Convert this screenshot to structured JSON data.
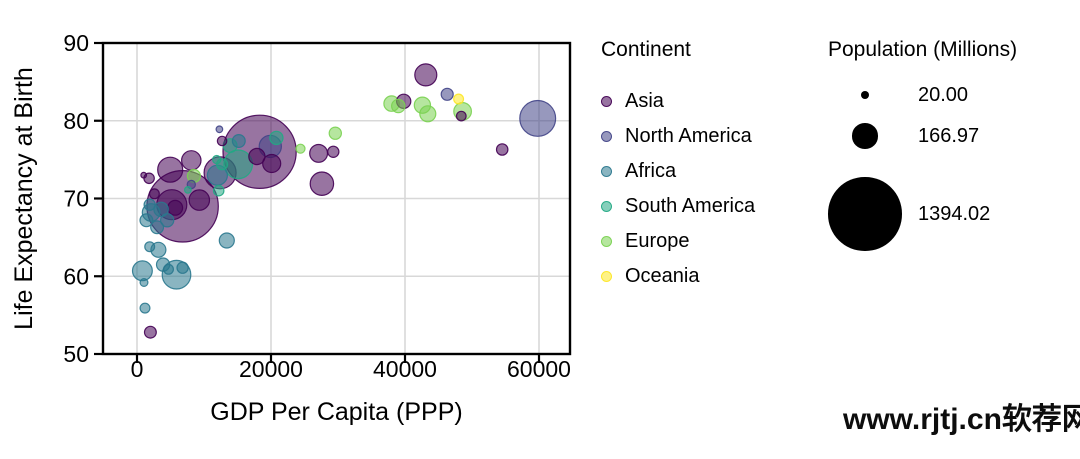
{
  "watermark": "www.rjtj.cn软荐网",
  "colors": {
    "background": "#ffffff",
    "grid": "#d8d8d8",
    "axis": "#000000",
    "size_legend_circle": "#000000",
    "continent_palette": {
      "Asia": "#440154",
      "North America": "#414487",
      "Africa": "#2a788e",
      "South America": "#22a884",
      "Europe": "#7ad151",
      "Oceania": "#fde725"
    },
    "bubble_fill_opacity": 0.55,
    "bubble_stroke_opacity": 0.9
  },
  "legend_continent": {
    "title": "Continent",
    "items": [
      {
        "label": "Asia",
        "color": "#440154"
      },
      {
        "label": "North America",
        "color": "#414487"
      },
      {
        "label": "Africa",
        "color": "#2a788e"
      },
      {
        "label": "South America",
        "color": "#22a884"
      },
      {
        "label": "Europe",
        "color": "#7ad151"
      },
      {
        "label": "Oceania",
        "color": "#fde725"
      }
    ]
  },
  "legend_size": {
    "title": "Population (Millions)",
    "items": [
      {
        "label": "20.00",
        "value": 20.0
      },
      {
        "label": "166.97",
        "value": 166.97
      },
      {
        "label": "1394.02",
        "value": 1394.02
      }
    ]
  },
  "chart_data": {
    "type": "scatter",
    "title": "",
    "xlabel": "GDP Per Capita  (PPP)",
    "ylabel": "Life Expectancy at Birth",
    "x_ticks": [
      0,
      20000,
      40000,
      60000
    ],
    "x_tick_labels": [
      "0",
      "20000",
      "40000",
      "60000"
    ],
    "y_ticks": [
      50,
      60,
      70,
      80,
      90
    ],
    "y_tick_labels": [
      "50",
      "60",
      "70",
      "80",
      "90"
    ],
    "xlim": [
      -5100,
      64800
    ],
    "ylim": [
      50,
      90
    ],
    "grid": true,
    "legend_position": "right",
    "size_encoding": "population_millions",
    "color_encoding": "continent",
    "series": [
      {
        "name": "Asia",
        "color": "#440154",
        "points": [
          {
            "gdp": 18300,
            "life_expectancy": 76.0,
            "population": 1394.02
          },
          {
            "gdp": 6800,
            "life_expectancy": 69.0,
            "population": 1326.1
          },
          {
            "gdp": 43100,
            "life_expectancy": 85.9,
            "population": 125.5
          },
          {
            "gdp": 12400,
            "life_expectancy": 73.3,
            "population": 267.0
          },
          {
            "gdp": 5200,
            "life_expectancy": 69.2,
            "population": 233.5
          },
          {
            "gdp": 4950,
            "life_expectancy": 73.7,
            "population": 162.9
          },
          {
            "gdp": 9300,
            "life_expectancy": 69.8,
            "population": 109.2
          },
          {
            "gdp": 8100,
            "life_expectancy": 74.9,
            "population": 98.7
          },
          {
            "gdp": 17900,
            "life_expectancy": 75.4,
            "population": 69.0
          },
          {
            "gdp": 5700,
            "life_expectancy": 68.8,
            "population": 56.6
          },
          {
            "gdp": 39800,
            "life_expectancy": 82.5,
            "population": 51.8
          },
          {
            "gdp": 27600,
            "life_expectancy": 71.9,
            "population": 141.7
          },
          {
            "gdp": 27100,
            "life_expectancy": 75.8,
            "population": 82.0
          },
          {
            "gdp": 20100,
            "life_expectancy": 74.5,
            "population": 84.9
          },
          {
            "gdp": 29300,
            "life_expectancy": 76.0,
            "population": 32.7
          },
          {
            "gdp": 54500,
            "life_expectancy": 76.3,
            "population": 34.1
          },
          {
            "gdp": 2000,
            "life_expectancy": 52.8,
            "population": 36.6
          },
          {
            "gdp": 1800,
            "life_expectancy": 72.6,
            "population": 28.0
          },
          {
            "gdp": 12700,
            "life_expectancy": 77.4,
            "population": 22.9
          },
          {
            "gdp": 48400,
            "life_expectancy": 80.6,
            "population": 23.6
          },
          {
            "gdp": 1000,
            "life_expectancy": 73.0,
            "population": 8.0
          },
          {
            "gdp": 2600,
            "life_expectancy": 70.6,
            "population": 25.0
          }
        ]
      },
      {
        "name": "North America",
        "color": "#414487",
        "points": [
          {
            "gdp": 59800,
            "life_expectancy": 80.3,
            "population": 332.6
          },
          {
            "gdp": 46300,
            "life_expectancy": 83.4,
            "population": 37.7
          },
          {
            "gdp": 19900,
            "life_expectancy": 76.7,
            "population": 128.6
          },
          {
            "gdp": 8100,
            "life_expectancy": 71.8,
            "population": 17.2
          },
          {
            "gdp": 12300,
            "life_expectancy": 78.9,
            "population": 11.0
          }
        ]
      },
      {
        "name": "Africa",
        "color": "#2a788e",
        "points": [
          {
            "gdp": 5900,
            "life_expectancy": 60.2,
            "population": 214.0
          },
          {
            "gdp": 12000,
            "life_expectancy": 73.0,
            "population": 104.1
          },
          {
            "gdp": 800,
            "life_expectancy": 60.7,
            "population": 101.8
          },
          {
            "gdp": 2100,
            "life_expectancy": 68.2,
            "population": 80.0
          },
          {
            "gdp": 3200,
            "life_expectancy": 63.4,
            "population": 58.6
          },
          {
            "gdp": 13400,
            "life_expectancy": 64.6,
            "population": 58.0
          },
          {
            "gdp": 3600,
            "life_expectancy": 68.6,
            "population": 53.5
          },
          {
            "gdp": 4500,
            "life_expectancy": 67.2,
            "population": 45.6
          },
          {
            "gdp": 3900,
            "life_expectancy": 61.5,
            "population": 45.0
          },
          {
            "gdp": 1400,
            "life_expectancy": 67.2,
            "population": 43.3
          },
          {
            "gdp": 15200,
            "life_expectancy": 77.4,
            "population": 42.9
          },
          {
            "gdp": 3000,
            "life_expectancy": 66.3,
            "population": 42.0
          },
          {
            "gdp": 1900,
            "life_expectancy": 69.2,
            "population": 33.0
          },
          {
            "gdp": 6800,
            "life_expectancy": 61.1,
            "population": 32.5
          },
          {
            "gdp": 4700,
            "life_expectancy": 60.9,
            "population": 25.0
          },
          {
            "gdp": 1900,
            "life_expectancy": 63.8,
            "population": 25.0
          },
          {
            "gdp": 1200,
            "life_expectancy": 55.9,
            "population": 25.0
          },
          {
            "gdp": 1050,
            "life_expectancy": 59.2,
            "population": 16.0
          }
        ]
      },
      {
        "name": "South America",
        "color": "#22a884",
        "points": [
          {
            "gdp": 15100,
            "life_expectancy": 74.4,
            "population": 212.6
          },
          {
            "gdp": 13900,
            "life_expectancy": 76.8,
            "population": 49.1
          },
          {
            "gdp": 20800,
            "life_expectancy": 77.8,
            "population": 45.5
          },
          {
            "gdp": 12700,
            "life_expectancy": 74.4,
            "population": 31.9
          },
          {
            "gdp": 12200,
            "life_expectancy": 71.0,
            "population": 28.5
          },
          {
            "gdp": 11900,
            "life_expectancy": 75.0,
            "population": 17.1
          },
          {
            "gdp": 7600,
            "life_expectancy": 71.1,
            "population": 11.6
          }
        ]
      },
      {
        "name": "Europe",
        "color": "#7ad151",
        "points": [
          {
            "gdp": 48600,
            "life_expectancy": 81.2,
            "population": 80.2
          },
          {
            "gdp": 42600,
            "life_expectancy": 82.0,
            "population": 67.8
          },
          {
            "gdp": 43400,
            "life_expectancy": 80.9,
            "population": 66.8
          },
          {
            "gdp": 38000,
            "life_expectancy": 82.2,
            "population": 62.4
          },
          {
            "gdp": 39000,
            "life_expectancy": 81.9,
            "population": 46.7
          },
          {
            "gdp": 8500,
            "life_expectancy": 72.9,
            "population": 43.9
          },
          {
            "gdp": 29600,
            "life_expectancy": 78.4,
            "population": 38.4
          },
          {
            "gdp": 24400,
            "life_expectancy": 76.4,
            "population": 21.5
          }
        ]
      },
      {
        "name": "Oceania",
        "color": "#fde725",
        "points": [
          {
            "gdp": 48000,
            "life_expectancy": 82.8,
            "population": 25.5
          }
        ]
      }
    ]
  }
}
